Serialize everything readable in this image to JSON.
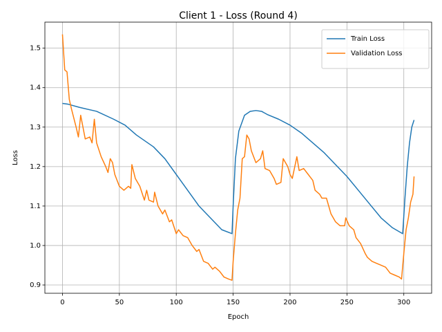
{
  "chart_data": {
    "type": "line",
    "title": "Client 1 - Loss (Round 4)",
    "x_label": "Epoch",
    "y_label": "Loss",
    "xlim": [
      -15.45,
      324.45
    ],
    "ylim": [
      0.879,
      1.566
    ],
    "xticks": [
      0,
      50,
      100,
      150,
      200,
      250,
      300
    ],
    "yticks": [
      0.9,
      {
        "value": 1,
        "label": "1.0"
      },
      1.1,
      1.2,
      1.3,
      1.4,
      1.5
    ],
    "grid": true,
    "legend": "upper right",
    "series": [
      {
        "name": "Train Loss",
        "color": "#1f77b4",
        "x": [
          0,
          5,
          15,
          30,
          45,
          55,
          65,
          80,
          90,
          100,
          110,
          120,
          130,
          140,
          149,
          150,
          152,
          155,
          160,
          165,
          170,
          175,
          180,
          190,
          200,
          210,
          220,
          230,
          240,
          250,
          260,
          270,
          280,
          290,
          299,
          301,
          303,
          305,
          307,
          309
        ],
        "values": [
          1.36,
          1.358,
          1.35,
          1.34,
          1.32,
          1.305,
          1.28,
          1.25,
          1.22,
          1.18,
          1.14,
          1.1,
          1.07,
          1.04,
          1.03,
          1.1,
          1.22,
          1.29,
          1.33,
          1.34,
          1.342,
          1.34,
          1.332,
          1.32,
          1.305,
          1.285,
          1.26,
          1.235,
          1.205,
          1.175,
          1.14,
          1.105,
          1.07,
          1.045,
          1.03,
          1.12,
          1.2,
          1.26,
          1.3,
          1.318
        ]
      },
      {
        "name": "Validation Loss",
        "color": "#ff7f0e",
        "x": [
          0,
          2,
          4,
          6,
          8,
          12,
          14,
          16,
          18,
          20,
          24,
          26,
          28,
          30,
          34,
          38,
          40,
          42,
          44,
          46,
          50,
          54,
          58,
          60,
          61,
          64,
          68,
          72,
          74,
          76,
          80,
          81,
          84,
          88,
          90,
          94,
          96,
          100,
          102,
          106,
          110,
          114,
          118,
          120,
          124,
          128,
          132,
          134,
          138,
          142,
          146,
          149,
          150,
          152,
          154,
          156,
          158,
          160,
          162,
          164,
          166,
          170,
          174,
          176,
          178,
          182,
          186,
          188,
          192,
          194,
          198,
          200,
          202,
          206,
          208,
          212,
          216,
          220,
          222,
          226,
          228,
          232,
          236,
          240,
          244,
          248,
          249,
          252,
          256,
          258,
          262,
          266,
          268,
          272,
          276,
          280,
          284,
          288,
          292,
          296,
          298,
          300,
          302,
          304,
          306,
          308,
          309
        ],
        "values": [
          1.535,
          1.445,
          1.44,
          1.37,
          1.345,
          1.3,
          1.275,
          1.33,
          1.3,
          1.27,
          1.275,
          1.26,
          1.32,
          1.26,
          1.225,
          1.2,
          1.185,
          1.22,
          1.21,
          1.18,
          1.15,
          1.14,
          1.15,
          1.145,
          1.205,
          1.17,
          1.15,
          1.115,
          1.14,
          1.115,
          1.11,
          1.135,
          1.1,
          1.08,
          1.09,
          1.06,
          1.065,
          1.03,
          1.04,
          1.025,
          1.02,
          1.0,
          0.985,
          0.99,
          0.96,
          0.955,
          0.94,
          0.945,
          0.935,
          0.92,
          0.915,
          0.912,
          0.96,
          1.03,
          1.09,
          1.12,
          1.22,
          1.225,
          1.28,
          1.27,
          1.24,
          1.21,
          1.22,
          1.24,
          1.195,
          1.19,
          1.17,
          1.155,
          1.16,
          1.22,
          1.2,
          1.18,
          1.17,
          1.225,
          1.19,
          1.195,
          1.18,
          1.165,
          1.14,
          1.13,
          1.12,
          1.12,
          1.08,
          1.06,
          1.05,
          1.05,
          1.07,
          1.05,
          1.04,
          1.02,
          1.005,
          0.98,
          0.97,
          0.96,
          0.955,
          0.95,
          0.945,
          0.93,
          0.925,
          0.92,
          0.915,
          0.98,
          1.04,
          1.07,
          1.11,
          1.13,
          1.175
        ]
      }
    ]
  }
}
